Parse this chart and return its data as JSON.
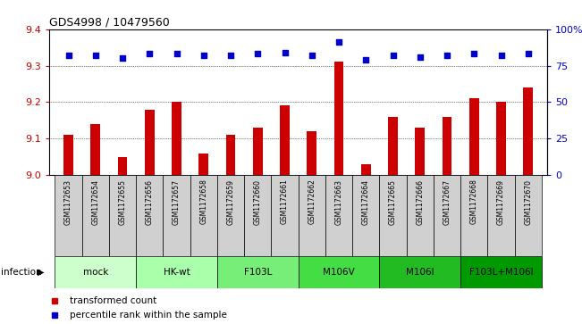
{
  "title": "GDS4998 / 10479560",
  "samples": [
    "GSM1172653",
    "GSM1172654",
    "GSM1172655",
    "GSM1172656",
    "GSM1172657",
    "GSM1172658",
    "GSM1172659",
    "GSM1172660",
    "GSM1172661",
    "GSM1172662",
    "GSM1172663",
    "GSM1172664",
    "GSM1172665",
    "GSM1172666",
    "GSM1172667",
    "GSM1172668",
    "GSM1172669",
    "GSM1172670"
  ],
  "bar_values": [
    9.11,
    9.14,
    9.05,
    9.18,
    9.2,
    9.06,
    9.11,
    9.13,
    9.19,
    9.12,
    9.31,
    9.03,
    9.16,
    9.13,
    9.16,
    9.21,
    9.2,
    9.24
  ],
  "percentile_values": [
    82,
    82,
    80,
    83,
    83,
    82,
    82,
    83,
    84,
    82,
    91,
    79,
    82,
    81,
    82,
    83,
    82,
    83
  ],
  "ylim_left": [
    9.0,
    9.4
  ],
  "ylim_right": [
    0,
    100
  ],
  "yticks_left": [
    9.0,
    9.1,
    9.2,
    9.3,
    9.4
  ],
  "yticks_right": [
    0,
    25,
    50,
    75,
    100
  ],
  "bar_color": "#cc0000",
  "dot_color": "#0000cc",
  "group_data": [
    {
      "label": "mock",
      "indices": [
        0,
        1,
        2
      ],
      "color": "#ccffcc"
    },
    {
      "label": "HK-wt",
      "indices": [
        3,
        4,
        5
      ],
      "color": "#aaffaa"
    },
    {
      "label": "F103L",
      "indices": [
        6,
        7,
        8
      ],
      "color": "#77ee77"
    },
    {
      "label": "M106V",
      "indices": [
        9,
        10,
        11
      ],
      "color": "#44dd44"
    },
    {
      "label": "M106I",
      "indices": [
        12,
        13,
        14
      ],
      "color": "#22bb22"
    },
    {
      "label": "F103L+M106I",
      "indices": [
        15,
        16,
        17
      ],
      "color": "#009900"
    }
  ],
  "infection_label": "infection",
  "legend_bar_label": "transformed count",
  "legend_dot_label": "percentile rank within the sample",
  "tick_label_color_left": "#cc0000",
  "tick_label_color_right": "#0000cc",
  "sample_box_color": "#d0d0d0",
  "right_tick_labels": [
    "0",
    "25",
    "50",
    "75",
    "100%"
  ]
}
